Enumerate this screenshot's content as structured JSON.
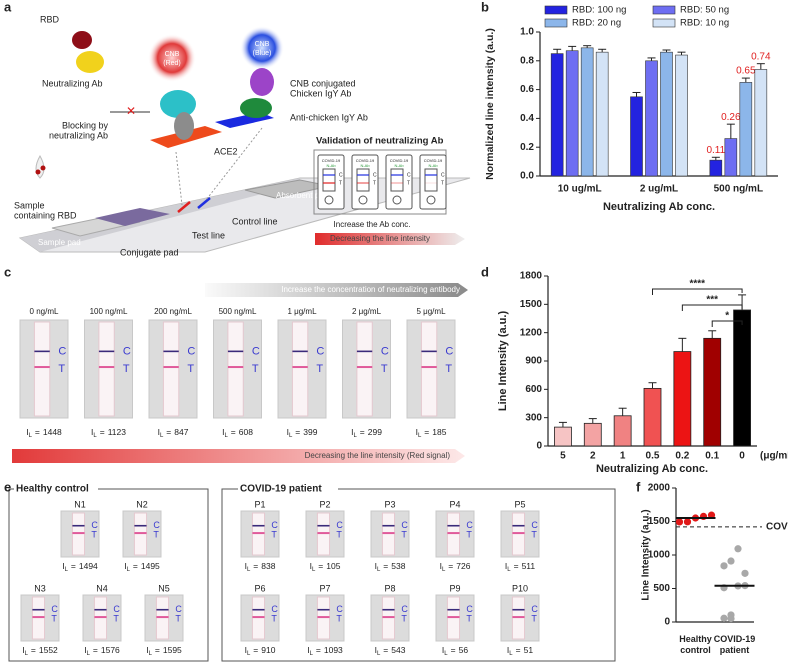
{
  "panel_labels": [
    "a",
    "b",
    "c",
    "d",
    "e",
    "f"
  ],
  "schematic": {
    "rbd": "RBD",
    "neutralizing_ab": "Neutralizing Ab",
    "cnb_red": [
      "CNB",
      "(Red)"
    ],
    "cnb_blue": [
      "CNB",
      "(Blue)"
    ],
    "cnb_conjugated": [
      "CNB conjugated",
      "Chicken IgY Ab"
    ],
    "anti_chicken": "Anti-chicken IgY Ab",
    "blocking": [
      "Blocking by",
      "neutralizing Ab"
    ],
    "ace2": "ACE2",
    "sample": [
      "Sample",
      "containing RBD"
    ],
    "absorbent_pad": "Absorbent pad",
    "control_line": "Control line",
    "test_line": "Test line",
    "sample_pad": "Sample pad",
    "conjugate_pad": "Conjugate pad"
  },
  "validation": {
    "title": "Validation of neutralizing Ab",
    "strip_header": "COVID-19",
    "strip_subheader": "N-Ab",
    "caption": "Increase the Ab conc.",
    "arrow_label": "Decreasing the line intensity"
  },
  "strip_marks": {
    "control": "C",
    "test": "T"
  },
  "readout": {
    "symbol": "I",
    "subscript": "L",
    "relation": "="
  },
  "strip_test": {
    "gradient_label": "Increase the concentration of neutralizing antibody",
    "concentrations": [
      "0 ng/mL",
      "100 ng/mL",
      "200 ng/mL",
      "500 ng/mL",
      "1 μg/mL",
      "2 μg/mL",
      "5 μg/mL"
    ],
    "intensities": [
      1448,
      1123,
      847,
      608,
      399,
      299,
      185
    ],
    "arrow_label": "Decreasing the line intensity (Red signal)"
  },
  "clinical": {
    "groups": [
      {
        "title": "Healthy control",
        "samples": [
          "N1",
          "N2",
          "N3",
          "N4",
          "N5"
        ],
        "intensities": [
          1494,
          1495,
          1552,
          1576,
          1595
        ]
      },
      {
        "title": "COVID-19 patient",
        "samples": [
          "P1",
          "P2",
          "P3",
          "P4",
          "P5",
          "P6",
          "P7",
          "P8",
          "P9",
          "P10"
        ],
        "intensities": [
          838,
          105,
          538,
          726,
          511,
          910,
          1093,
          543,
          56,
          51
        ]
      }
    ]
  },
  "chart_data": [
    {
      "type": "bar",
      "ylabel": "Normalized line intensity (a.u.)",
      "xlabel": "Neutralizing Ab conc.",
      "categories": [
        "10 ug/mL",
        "2 ug/mL",
        "500 ng/mL"
      ],
      "series": [
        {
          "name": "RBD: 100 ng",
          "color": "#2323e0",
          "values": [
            0.85,
            0.55,
            0.11
          ],
          "errors": [
            0.03,
            0.03,
            0.02
          ],
          "value_labels": [
            null,
            null,
            "0.11"
          ]
        },
        {
          "name": "RBD: 50 ng",
          "color": "#6e6ef2",
          "values": [
            0.87,
            0.8,
            0.26
          ],
          "errors": [
            0.03,
            0.02,
            0.1
          ],
          "value_labels": [
            null,
            null,
            "0.26"
          ]
        },
        {
          "name": "RBD: 20 ng",
          "color": "#8cb6ea",
          "values": [
            0.89,
            0.86,
            0.65
          ],
          "errors": [
            0.015,
            0.015,
            0.03
          ],
          "value_labels": [
            null,
            null,
            "0.65"
          ]
        },
        {
          "name": "RBD: 10 ng",
          "color": "#d3e3f6",
          "values": [
            0.86,
            0.84,
            0.74
          ],
          "errors": [
            0.02,
            0.02,
            0.04
          ],
          "value_labels": [
            null,
            null,
            "0.74"
          ]
        }
      ],
      "value_label_color": "#e02020",
      "ylim": [
        0,
        1
      ],
      "yticks": [
        {
          "value": 0,
          "label": "0.0"
        },
        0.2,
        0.4,
        0.6,
        0.8,
        {
          "value": 1,
          "label": "1.0"
        }
      ]
    },
    {
      "type": "bar",
      "ylabel": "Line Intensity (a.u.)",
      "xlabel": "Neutralizing Ab conc.",
      "x_unit": "(μg/mL)",
      "categories": [
        "5",
        "2",
        "1",
        "0.5",
        "0.2",
        "0.1",
        "0"
      ],
      "values": [
        200,
        240,
        320,
        610,
        1000,
        1140,
        1440
      ],
      "errors": [
        50,
        50,
        80,
        60,
        140,
        80,
        160
      ],
      "colors": [
        "#f6c4c4",
        "#f3a3a3",
        "#f08282",
        "#f05252",
        "#ec1414",
        "#a00000",
        "#000000"
      ],
      "ylim": [
        0,
        1800
      ],
      "yticks": [
        0,
        300,
        600,
        900,
        1200,
        1500,
        1800
      ],
      "significance": [
        {
          "from": "0.5",
          "to": "0",
          "label": "****"
        },
        {
          "from": "0.2",
          "to": "0",
          "label": "***"
        },
        {
          "from": "0.1",
          "to": "0",
          "label": "*"
        }
      ]
    },
    {
      "type": "strip",
      "ylabel": "Line Intensity (a.u.)",
      "categories": [
        "Healthy control",
        "COVID-19 patient"
      ],
      "groups": [
        {
          "values": [
            1494,
            1495,
            1552,
            1576,
            1595
          ],
          "color": "#e01818",
          "median": 1552
        },
        {
          "values": [
            838,
            105,
            538,
            726,
            511,
            910,
            1093,
            543,
            56,
            51
          ],
          "color": "#a8a8a8",
          "median": 540.5
        }
      ],
      "cutoff": 1420,
      "cutoff_label": "COV",
      "ylim": [
        0,
        2000
      ],
      "yticks": [
        0,
        500,
        1000,
        1500,
        2000
      ]
    }
  ]
}
